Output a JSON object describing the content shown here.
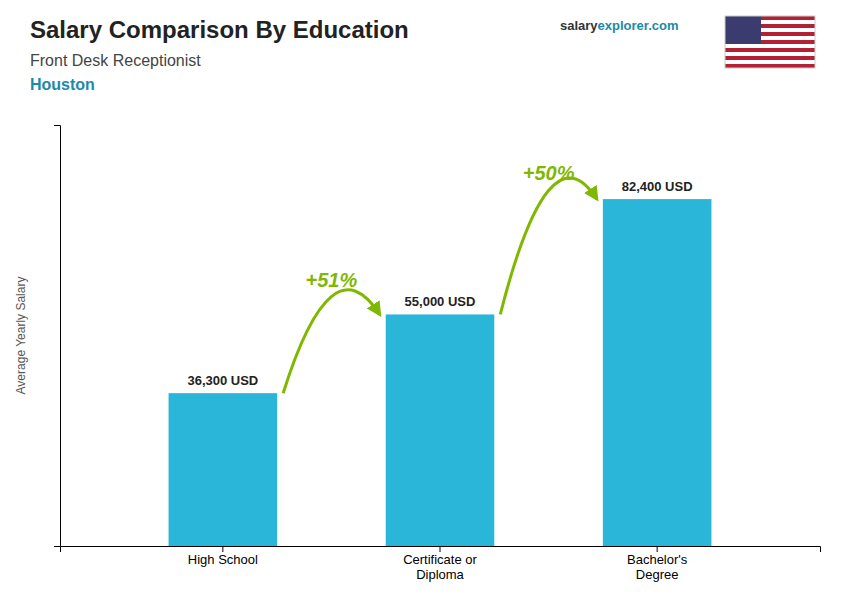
{
  "chart_data": {
    "type": "bar",
    "title": "Salary Comparison By Education",
    "subtitle": "Front Desk Receptionist",
    "location": "Houston",
    "watermark": [
      "salary",
      "explorer",
      ".com"
    ],
    "ylabel": "Average Yearly Salary",
    "categories": [
      "High School",
      "Certificate or\nDiploma",
      "Bachelor's\nDegree"
    ],
    "values": [
      36300,
      55000,
      82400
    ],
    "value_labels": [
      "36,300 USD",
      "55,000 USD",
      "82,400 USD"
    ],
    "data_labels": true,
    "annotations": [
      "+51%",
      "+50%"
    ],
    "color": "#29b6d8",
    "ylim": [
      0,
      100000
    ],
    "tick_labels": "x",
    "grid": false
  }
}
